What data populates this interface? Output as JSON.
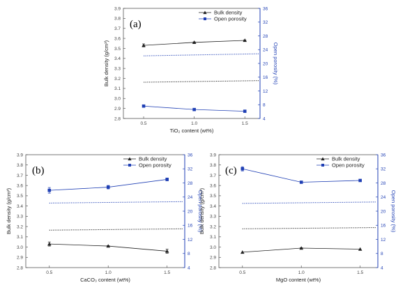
{
  "figure": {
    "bulk_ylabel": "Bulk density (g/cm³)",
    "porosity_ylabel": "Open porosity (%)",
    "legend": {
      "bulk": "Bulk density",
      "porosity": "Open porosity"
    }
  },
  "colors": {
    "bulk": "#222222",
    "porosity": "#1f3fb4",
    "frame": "#555555"
  },
  "chart_data": [
    {
      "type": "line",
      "panel_label": "(a)",
      "xlabel": "TiO₂ content (wt%)",
      "x": [
        0.5,
        1.0,
        1.5
      ],
      "xticks": [
        "0.5",
        "1.0",
        "1.5"
      ],
      "xlim": [
        0.3,
        1.65
      ],
      "ylim": [
        2.8,
        3.9
      ],
      "yticks": [
        "2.8",
        "2.9",
        "3.0",
        "3.1",
        "3.2",
        "3.3",
        "3.4",
        "3.5",
        "3.6",
        "3.7",
        "3.8",
        "3.9"
      ],
      "y2lim": [
        4,
        36
      ],
      "y2ticks": [
        "4",
        "8",
        "12",
        "16",
        "20",
        "24",
        "28",
        "32",
        "36"
      ],
      "series": [
        {
          "name": "Bulk density",
          "axis": "left",
          "marker": "triangle",
          "values": [
            3.53,
            3.56,
            3.58
          ],
          "errors": [
            0.015,
            0.005,
            0.005
          ]
        },
        {
          "name": "Open porosity",
          "axis": "right",
          "marker": "square",
          "values": [
            7.6,
            6.6,
            6.1
          ],
          "errors": [
            0,
            0,
            0.3
          ]
        }
      ],
      "ref_lines": [
        {
          "axis": "left",
          "values": [
            3.162,
            3.178
          ],
          "style": "dotted-black"
        },
        {
          "axis": "right",
          "values": [
            22.2,
            22.8
          ],
          "style": "dotted-blue"
        }
      ]
    },
    {
      "type": "line",
      "panel_label": "(b)",
      "xlabel": "CaCO₃ content (wt%)",
      "x": [
        0.5,
        1.0,
        1.5
      ],
      "xticks": [
        "0.5",
        "1.0",
        "1.5"
      ],
      "xlim": [
        0.3,
        1.65
      ],
      "ylim": [
        2.8,
        3.9
      ],
      "yticks": [
        "2.8",
        "2.9",
        "3.0",
        "3.1",
        "3.2",
        "3.3",
        "3.4",
        "3.5",
        "3.6",
        "3.7",
        "3.8",
        "3.9"
      ],
      "y2lim": [
        4,
        36
      ],
      "y2ticks": [
        "4",
        "8",
        "12",
        "16",
        "20",
        "24",
        "28",
        "32",
        "36"
      ],
      "series": [
        {
          "name": "Bulk density",
          "axis": "left",
          "marker": "triangle",
          "values": [
            3.03,
            3.01,
            2.96
          ],
          "errors": [
            0.02,
            0.005,
            0.02
          ]
        },
        {
          "name": "Open porosity",
          "axis": "right",
          "marker": "square",
          "values": [
            25.9,
            26.8,
            29.0
          ],
          "errors": [
            0.8,
            0.5,
            0.4
          ]
        }
      ],
      "ref_lines": [
        {
          "axis": "left",
          "values": [
            3.165,
            3.178
          ],
          "style": "dotted-black"
        },
        {
          "axis": "right",
          "values": [
            22.3,
            22.7
          ],
          "style": "dotted-blue"
        }
      ]
    },
    {
      "type": "line",
      "panel_label": "(c)",
      "xlabel": "MgO content (wt%)",
      "x": [
        0.5,
        1.0,
        1.5
      ],
      "xticks": [
        "0.5",
        "1.0",
        "1.5"
      ],
      "xlim": [
        0.3,
        1.65
      ],
      "ylim": [
        2.8,
        3.9
      ],
      "yticks": [
        "2.8",
        "2.9",
        "3.0",
        "3.1",
        "3.2",
        "3.3",
        "3.4",
        "3.5",
        "3.6",
        "3.7",
        "3.8",
        "3.9"
      ],
      "y2lim": [
        4,
        36
      ],
      "y2ticks": [
        "4",
        "8",
        "12",
        "16",
        "20",
        "24",
        "28",
        "32",
        "36"
      ],
      "series": [
        {
          "name": "Bulk density",
          "axis": "left",
          "marker": "triangle",
          "values": [
            2.95,
            2.99,
            2.98
          ],
          "errors": [
            0,
            0.005,
            0
          ]
        },
        {
          "name": "Open porosity",
          "axis": "right",
          "marker": "square",
          "values": [
            32.0,
            28.2,
            28.7
          ],
          "errors": [
            0.6,
            0,
            0.3
          ]
        }
      ],
      "ref_lines": [
        {
          "axis": "left",
          "values": [
            3.178,
            3.19
          ],
          "style": "dotted-black"
        },
        {
          "axis": "right",
          "values": [
            22.2,
            22.6
          ],
          "style": "dotted-blue"
        }
      ]
    }
  ]
}
